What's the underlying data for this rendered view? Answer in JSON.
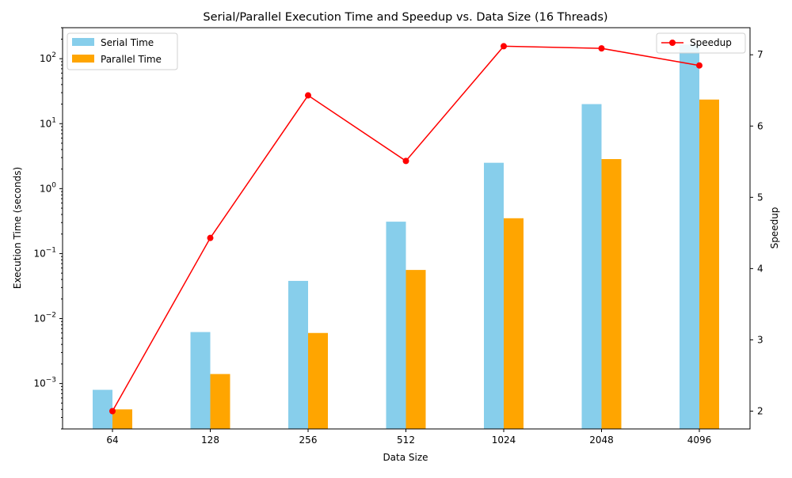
{
  "chart_data": {
    "type": "bar",
    "title": "Serial/Parallel Execution Time and Speedup vs. Data Size (16 Threads)",
    "xlabel": "Data Size",
    "ylabel": "Execution Time (seconds)",
    "ylabel_right": "Speedup",
    "categories": [
      "64",
      "128",
      "256",
      "512",
      "1024",
      "2048",
      "4096"
    ],
    "y_scale": "log",
    "ylim": [
      0.0002,
      300
    ],
    "y_ticks": [
      0.001,
      0.01,
      0.1,
      1,
      10,
      100
    ],
    "y_tick_labels": [
      {
        "base": "10",
        "exp": "−3"
      },
      {
        "base": "10",
        "exp": "−2"
      },
      {
        "base": "10",
        "exp": "−1"
      },
      {
        "base": "10",
        "exp": "0"
      },
      {
        "base": "10",
        "exp": "1"
      },
      {
        "base": "10",
        "exp": "2"
      }
    ],
    "y2lim": [
      1.75,
      7.38
    ],
    "y2_ticks": [
      2,
      3,
      4,
      5,
      6,
      7
    ],
    "y2_tick_labels": [
      "2",
      "3",
      "4",
      "5",
      "6",
      "7"
    ],
    "series": [
      {
        "name": "Serial Time",
        "axis": "left",
        "kind": "bar",
        "color": "#87ceeb",
        "values": [
          0.0008,
          0.0062,
          0.038,
          0.31,
          2.5,
          20,
          165
        ]
      },
      {
        "name": "Parallel Time",
        "axis": "left",
        "kind": "bar",
        "color": "#ffa500",
        "values": [
          0.0004,
          0.0014,
          0.006,
          0.056,
          0.35,
          2.85,
          23.5
        ]
      },
      {
        "name": "Speedup",
        "axis": "right",
        "kind": "line",
        "color": "#ff0000",
        "values": [
          2.0,
          4.43,
          6.43,
          5.51,
          7.12,
          7.09,
          6.85
        ]
      }
    ],
    "legend": {
      "left": "top-left",
      "right": "top-right"
    },
    "grid": false
  }
}
